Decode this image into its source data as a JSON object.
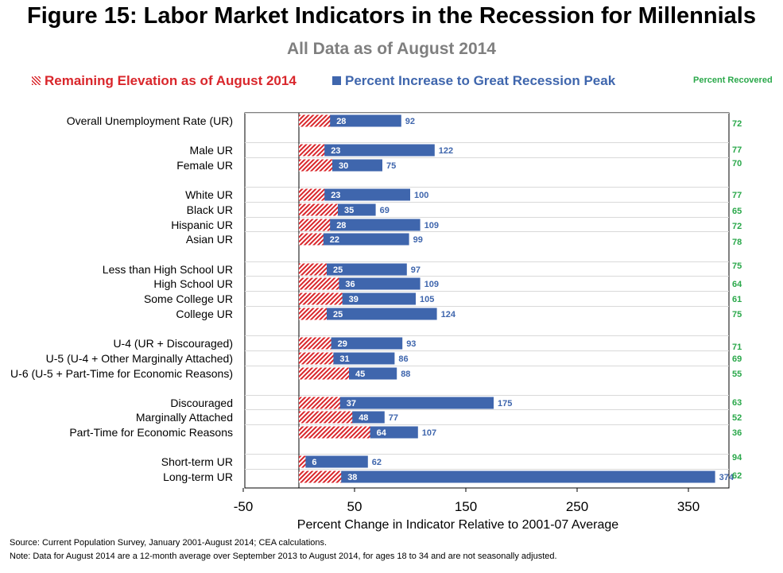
{
  "title": "Figure 15: Labor Market Indicators in the Recession for Millennials",
  "subtitle": "All Data as of August 2014",
  "legend": {
    "remaining": "Remaining Elevation as of August 2014",
    "increase": "Percent Increase to Great Recession Peak",
    "recovered": "Percent Recovered"
  },
  "colors": {
    "remaining": "#d9262b",
    "increase": "#3f66ad",
    "recovered": "#2aa84a"
  },
  "chart_data": {
    "type": "bar",
    "orientation": "horizontal",
    "xlabel": "Percent Change in Indicator Relative to 2001-07 Average",
    "xlim": [
      -50,
      400
    ],
    "xticks": [
      -50,
      50,
      150,
      250,
      350
    ],
    "categories": [
      "Overall Unemployment Rate (UR)",
      "Male UR",
      "Female UR",
      "White UR",
      "Black UR",
      "Hispanic UR",
      "Asian UR",
      "Less than High School UR",
      "High School UR",
      "Some College UR",
      "College UR",
      "U-4 (UR + Discouraged)",
      "U-5 (U-4 + Other Marginally Attached)",
      "U-6 (U-5 + Part-Time for Economic Reasons)",
      "Discouraged",
      "Marginally Attached",
      "Part-Time for Economic Reasons",
      "Short-term UR",
      "Long-term UR"
    ],
    "series": [
      {
        "name": "Remaining Elevation as of August 2014",
        "values": [
          28,
          23,
          30,
          23,
          35,
          28,
          22,
          25,
          36,
          39,
          25,
          29,
          31,
          45,
          37,
          48,
          64,
          6,
          38
        ]
      },
      {
        "name": "Percent Increase to Great Recession Peak",
        "values": [
          92,
          122,
          75,
          100,
          69,
          109,
          99,
          97,
          109,
          105,
          124,
          93,
          86,
          88,
          175,
          77,
          107,
          62,
          374
        ]
      },
      {
        "name": "Percent Recovered",
        "values": [
          72,
          77,
          70,
          77,
          65,
          72,
          78,
          75,
          64,
          61,
          75,
          71,
          69,
          55,
          63,
          52,
          36,
          94,
          62
        ]
      }
    ]
  },
  "footnotes": {
    "source": "Source: Current Population Survey, January 2001-August 2014; CEA calculations.",
    "note": "Note: Data for August 2014 are a 12-month average over September 2013 to August 2014,  for ages 18 to 34 and are not seasonally adjusted."
  }
}
